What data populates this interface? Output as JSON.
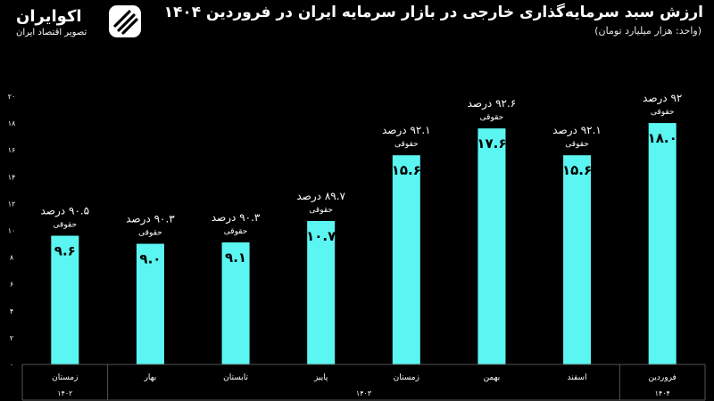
{
  "header": {
    "title": "ارزش سبد سرمایه‌گذاری خارجی در بازار سرمایه ایران در فروردین ۱۴۰۴",
    "subtitle": "(واحد: هزار میلیارد تومان)"
  },
  "brand": {
    "name": "اکوایران",
    "tagline": "تصویر اقتصاد ایران"
  },
  "colors": {
    "background": "#000000",
    "bar": "#5cf6f2",
    "text": "#ffffff",
    "grid": "#555555"
  },
  "chart_data": {
    "type": "bar",
    "categories": [
      "زمستان",
      "بهار",
      "تابستان",
      "پاییز",
      "زمستان",
      "بهمن",
      "اسفند",
      "فروردین"
    ],
    "values": [
      9.6,
      9.0,
      9.1,
      10.7,
      15.6,
      17.6,
      15.6,
      18.0
    ],
    "value_labels": [
      "۹.۶",
      "۹.۰",
      "۹.۱",
      "۱۰.۷",
      "۱۵.۶",
      "۱۷.۶",
      "۱۵.۶",
      "۱۸.۰"
    ],
    "percent_labels": [
      "۹۰.۵ درصد",
      "۹۰.۳ درصد",
      "۹۰.۳ درصد",
      "۸۹.۷ درصد",
      "۹۲.۱ درصد",
      "۹۲.۶ درصد",
      "۹۲.۱ درصد",
      "۹۲ درصد"
    ],
    "percent_caption": "حقوقی",
    "y_ticks": [
      "۰",
      "۲",
      "۴",
      "۶",
      "۸",
      "۱۰",
      "۱۲",
      "۱۴",
      "۱۶",
      "۱۸",
      "۲۰"
    ],
    "ylim": [
      0,
      20
    ],
    "groups": [
      {
        "label": "۱۴۰۲",
        "start": 0,
        "end": 0
      },
      {
        "label": "۱۴۰۳",
        "start": 1,
        "end": 6
      },
      {
        "label": "۱۴۰۴",
        "start": 7,
        "end": 7
      }
    ],
    "grid": false,
    "legend": "none"
  }
}
